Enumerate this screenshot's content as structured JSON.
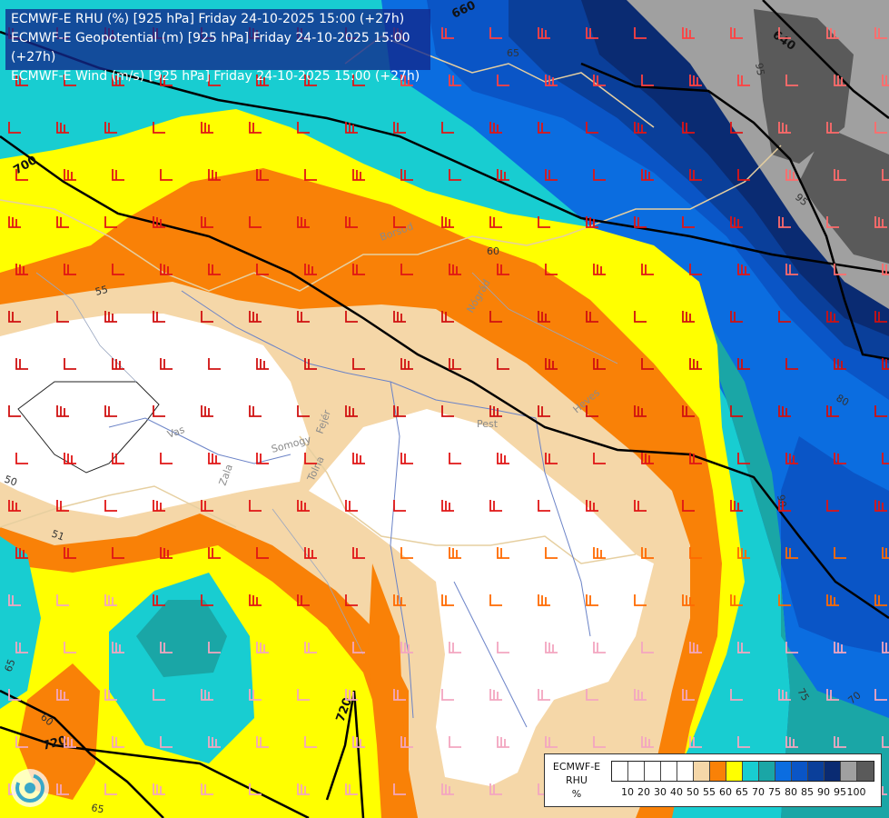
{
  "header": {
    "lines": [
      "ECMWF-E RHU (%) [925 hPa] Friday 24-10-2025 15:00 (+27h)",
      "ECMWF-E Geopotential (m) [925 hPa] Friday 24-10-2025 15:00 (+27h)",
      "ECMWF-E Wind (m/s) [925 hPa] Friday 24-10-2025 15:00 (+27h)"
    ]
  },
  "legend": {
    "title_lines": [
      "ECMWF-E",
      "RHU",
      "%"
    ],
    "colors": [
      "#ffffff",
      "#ffffff",
      "#ffffff",
      "#ffffff",
      "#ffffff",
      "#f5d7a8",
      "#f98107",
      "#ffff00",
      "#18cdd1",
      "#1aa6a6",
      "#0b6de0",
      "#0a55c6",
      "#0a3f9a",
      "#0a2b72",
      "#a0a0a0",
      "#5a5a5a"
    ],
    "ticks": [
      "10",
      "20",
      "30",
      "40",
      "50",
      "55",
      "60",
      "65",
      "70",
      "75",
      "80",
      "85",
      "90",
      "95",
      "100"
    ]
  },
  "geopotential_labels": [
    "660",
    "640",
    "700",
    "720",
    "720"
  ],
  "rhu_labels": [
    "65",
    "95",
    "95",
    "55",
    "60",
    "80",
    "90",
    "50",
    "75",
    "70",
    "65",
    "60",
    "65",
    "51"
  ],
  "region_labels": [
    "Vas",
    "Zala",
    "Somogy",
    "Tolna",
    "Fejér",
    "Pest",
    "Heves",
    "Nógrád",
    "Borsod"
  ],
  "colors": {
    "white_zone": "#ffffff",
    "tan": "#f5d7a8",
    "orange": "#f98107",
    "yellow": "#ffff00",
    "cyan": "#18cdd1",
    "teal": "#1aa6a6",
    "blue": "#0b6de0",
    "mid_blue": "#0a55c6",
    "dark_blue": "#0a3f9a",
    "navy": "#0a2b72",
    "grey": "#a0a0a0",
    "dark_grey": "#5a5a5a"
  }
}
